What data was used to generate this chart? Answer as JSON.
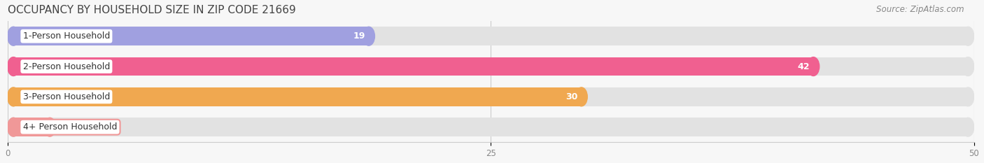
{
  "title": "OCCUPANCY BY HOUSEHOLD SIZE IN ZIP CODE 21669",
  "source": "Source: ZipAtlas.com",
  "categories": [
    "1-Person Household",
    "2-Person Household",
    "3-Person Household",
    "4+ Person Household"
  ],
  "values": [
    19,
    42,
    30,
    0
  ],
  "bar_colors": [
    "#a0a0e0",
    "#f06090",
    "#f0a850",
    "#f09898"
  ],
  "xlim": [
    0,
    50
  ],
  "xticks": [
    0,
    25,
    50
  ],
  "background_color": "#f7f7f7",
  "bar_bg_color": "#e2e2e2",
  "row_bg_colors": [
    "#f0f0f0",
    "#f0f0f0",
    "#f0f0f0",
    "#f0f0f0"
  ],
  "title_fontsize": 11,
  "source_fontsize": 8.5,
  "label_fontsize": 9,
  "value_fontsize": 9
}
